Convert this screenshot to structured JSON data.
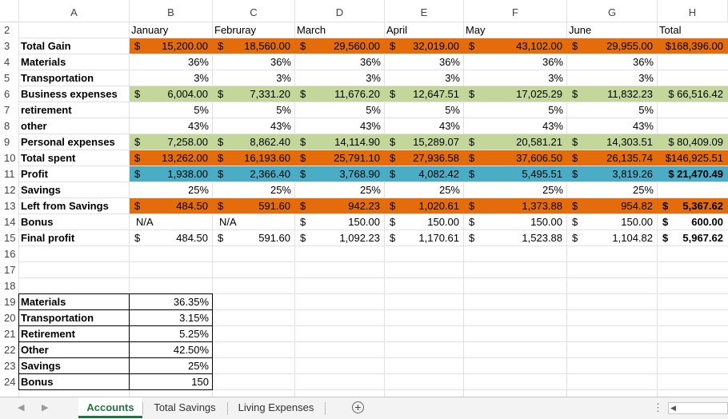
{
  "columns": [
    "A",
    "B",
    "C",
    "D",
    "E",
    "F",
    "G",
    "H"
  ],
  "rows": [
    {
      "n": "2",
      "label": "",
      "values": [
        "January",
        "Februray",
        "March",
        "April",
        "May",
        "June",
        "Total"
      ],
      "fill": "",
      "kind": "header"
    },
    {
      "n": "3",
      "label": "Total Gain",
      "values": [
        "15,200.00",
        "18,560.00",
        "29,560.00",
        "32,019.00",
        "43,102.00",
        "29,955.00",
        "$168,396.00"
      ],
      "fill": "orange",
      "kind": "cur"
    },
    {
      "n": "4",
      "label": "Materials",
      "values": [
        "36%",
        "36%",
        "36%",
        "36%",
        "36%",
        "36%",
        ""
      ],
      "fill": "",
      "kind": "pct"
    },
    {
      "n": "5",
      "label": "Transportation",
      "values": [
        "3%",
        "3%",
        "3%",
        "3%",
        "3%",
        "3%",
        ""
      ],
      "fill": "",
      "kind": "pct"
    },
    {
      "n": "6",
      "label": "Business expenses",
      "values": [
        "6,004.00",
        "7,331.20",
        "11,676.20",
        "12,647.51",
        "17,025.29",
        "11,832.23",
        "$ 66,516.42"
      ],
      "fill": "green",
      "kind": "cur"
    },
    {
      "n": "7",
      "label": "retirement",
      "values": [
        "5%",
        "5%",
        "5%",
        "5%",
        "5%",
        "5%",
        ""
      ],
      "fill": "",
      "kind": "pct"
    },
    {
      "n": "8",
      "label": "other",
      "values": [
        "43%",
        "43%",
        "43%",
        "43%",
        "43%",
        "43%",
        ""
      ],
      "fill": "",
      "kind": "pct"
    },
    {
      "n": "9",
      "label": "Personal expenses",
      "values": [
        "7,258.00",
        "8,862.40",
        "14,114.90",
        "15,289.07",
        "20,581.21",
        "14,303.51",
        "$ 80,409.09"
      ],
      "fill": "green",
      "kind": "cur"
    },
    {
      "n": "10",
      "label": "Total spent",
      "values": [
        "13,262.00",
        "16,193.60",
        "25,791.10",
        "27,936.58",
        "37,606.50",
        "26,135.74",
        "$146,925.51"
      ],
      "fill": "orange",
      "kind": "cur"
    },
    {
      "n": "11",
      "label": "Profit",
      "values": [
        "1,938.00",
        "2,366.40",
        "3,768.90",
        "4,082.42",
        "5,495.51",
        "3,819.26",
        "$ 21,470.49"
      ],
      "fill": "blue",
      "kind": "cur",
      "boldTotal": true
    },
    {
      "n": "12",
      "label": "Savings",
      "values": [
        "25%",
        "25%",
        "25%",
        "25%",
        "25%",
        "25%",
        ""
      ],
      "fill": "",
      "kind": "pct"
    },
    {
      "n": "13",
      "label": "Left from Savings",
      "values": [
        "484.50",
        "591.60",
        "942.23",
        "1,020.61",
        "1,373.88",
        "954.82",
        "5,367.62"
      ],
      "fill": "orange",
      "kind": "cur",
      "boldTotal": true
    },
    {
      "n": "14",
      "label": "Bonus",
      "values": [
        "N/A",
        "N/A",
        "150.00",
        "150.00",
        "150.00",
        "150.00",
        "600.00"
      ],
      "fill": "",
      "kind": "cur",
      "boldTotal": true
    },
    {
      "n": "15",
      "label": "Final profit",
      "values": [
        "484.50",
        "591.60",
        "1,092.23",
        "1,170.61",
        "1,523.88",
        "1,104.82",
        "5,967.62"
      ],
      "fill": "",
      "kind": "cur",
      "boldTotal": true
    },
    {
      "n": "16",
      "label": "",
      "values": [
        "",
        "",
        "",
        "",
        "",
        "",
        ""
      ],
      "fill": "",
      "kind": "empty"
    },
    {
      "n": "17",
      "label": "",
      "values": [
        "",
        "",
        "",
        "",
        "",
        "",
        ""
      ],
      "fill": "",
      "kind": "empty"
    },
    {
      "n": "18",
      "label": "",
      "values": [
        "",
        "",
        "",
        "",
        "",
        "",
        ""
      ],
      "fill": "",
      "kind": "empty"
    },
    {
      "n": "19",
      "label": "Materials",
      "values": [
        "36.35%",
        "",
        "",
        "",
        "",
        "",
        ""
      ],
      "fill": "",
      "kind": "ref"
    },
    {
      "n": "20",
      "label": "Transportation",
      "values": [
        "3.15%",
        "",
        "",
        "",
        "",
        "",
        ""
      ],
      "fill": "",
      "kind": "ref"
    },
    {
      "n": "21",
      "label": "Retirement",
      "values": [
        "5.25%",
        "",
        "",
        "",
        "",
        "",
        ""
      ],
      "fill": "",
      "kind": "ref"
    },
    {
      "n": "22",
      "label": "Other",
      "values": [
        "42.50%",
        "",
        "",
        "",
        "",
        "",
        ""
      ],
      "fill": "",
      "kind": "ref"
    },
    {
      "n": "23",
      "label": "Savings",
      "values": [
        "25%",
        "",
        "",
        "",
        "",
        "",
        ""
      ],
      "fill": "",
      "kind": "ref"
    },
    {
      "n": "24",
      "label": "Bonus",
      "values": [
        "150",
        "",
        "",
        "",
        "",
        "",
        ""
      ],
      "fill": "",
      "kind": "ref"
    }
  ],
  "currency_symbol": "$",
  "colors": {
    "orange": "#e46c0a",
    "green": "#c4d79b",
    "blue": "#4bacc6",
    "accent": "#217346"
  },
  "tabs": [
    {
      "label": "Accounts",
      "active": true
    },
    {
      "label": "Total Savings",
      "active": false
    },
    {
      "label": "Living Expenses",
      "active": false
    }
  ],
  "nav": {
    "prev": "◀",
    "next": "▶",
    "add": "+",
    "more": "⋮",
    "scroll_left": "◀"
  }
}
